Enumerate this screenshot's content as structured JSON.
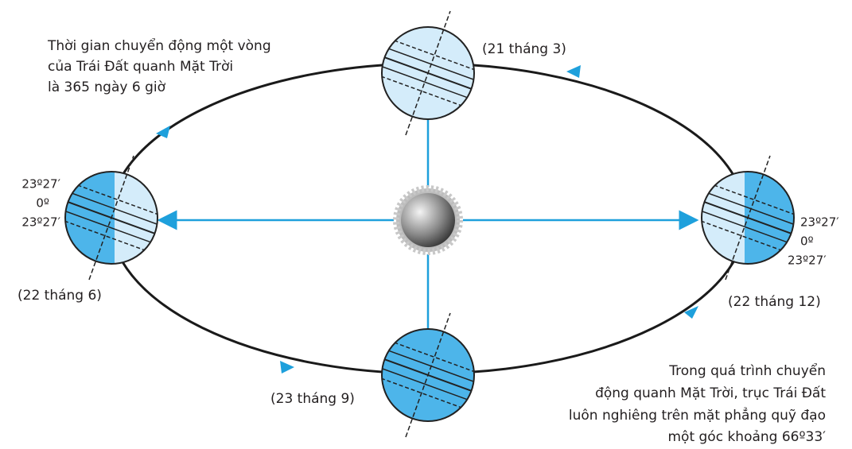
{
  "notes": {
    "orbit_period": [
      "Thời gian chuyển động một vòng",
      "của Trái Đất quanh Mặt Trời",
      "là 365 ngày 6 giờ"
    ],
    "axis_tilt": [
      "Trong quá trình chuyển",
      "động quanh Mặt Trời, trục Trái Đất",
      "luôn nghiêng trên mặt phẳng quỹ đạo",
      "một góc khoảng 66º33′"
    ]
  },
  "positions": [
    {
      "date": "(21 tháng 3)"
    },
    {
      "date": "(22 tháng 6)"
    },
    {
      "date": "(23 tháng 9)"
    },
    {
      "date": "(22 tháng 12)"
    }
  ],
  "latitudes": {
    "left": [
      "23º27′",
      "0º",
      "23º27′"
    ],
    "right": [
      "23º27′",
      "0º",
      "23º27′"
    ]
  }
}
